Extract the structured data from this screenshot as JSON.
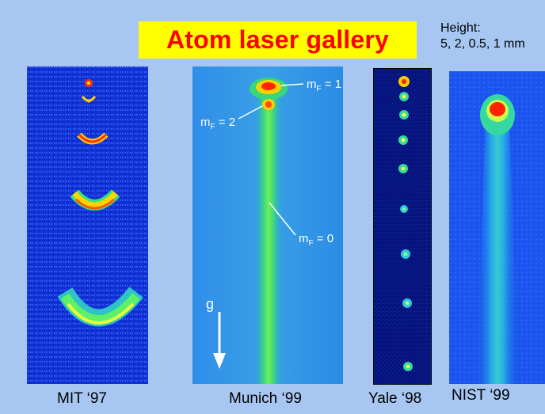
{
  "slide": {
    "title": "Atom laser gallery",
    "height_label": "Height:",
    "height_values": "5, 2, 0.5, 1 mm",
    "colors": {
      "background": "#a7c6f1",
      "title_bg": "#ffff00",
      "title_text": "#ff0000"
    }
  },
  "panels": [
    {
      "id": "mit",
      "caption": "MIT ‘97"
    },
    {
      "id": "munich",
      "caption": "Munich ‘99",
      "labels": {
        "mf1": "m",
        "mf1_sub": "F",
        "mf1_eq": " = 1",
        "mf2": "m",
        "mf2_sub": "F",
        "mf2_eq": " = 2",
        "mf0": "m",
        "mf0_sub": "F",
        "mf0_eq": " = 0",
        "gravity": "g"
      }
    },
    {
      "id": "yale",
      "caption": "Yale ‘98"
    },
    {
      "id": "nist",
      "caption": "NIST ‘99"
    }
  ]
}
